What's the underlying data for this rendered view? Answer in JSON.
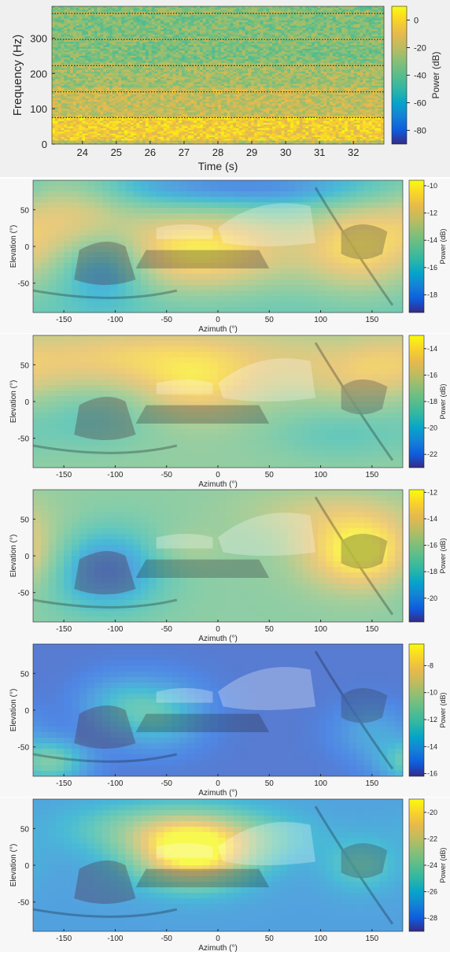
{
  "chart_data": [
    {
      "type": "heatmap",
      "title": "",
      "xlabel": "Time (s)",
      "ylabel": "Frequency (Hz)",
      "colorbar_label": "Power (dB)",
      "xlim": [
        23.1,
        32.9
      ],
      "ylim": [
        0,
        390
      ],
      "xticks": [
        24,
        25,
        26,
        27,
        28,
        29,
        30,
        31,
        32
      ],
      "yticks": [
        0,
        100,
        200,
        300
      ],
      "clim": [
        -90,
        10
      ],
      "colorbar_ticks": [
        0,
        -20,
        -40,
        -60,
        -80
      ],
      "harmonic_lines_hz": [
        75,
        148,
        222,
        296,
        370
      ],
      "band_power_db": [
        {
          "from_hz": 0,
          "to_hz": 10,
          "power_db": -20
        },
        {
          "from_hz": 10,
          "to_hz": 75,
          "power_db": -3
        },
        {
          "from_hz": 75,
          "to_hz": 160,
          "power_db": -18
        },
        {
          "from_hz": 160,
          "to_hz": 230,
          "power_db": -25
        },
        {
          "from_hz": 230,
          "to_hz": 390,
          "power_db": -32
        }
      ],
      "grid": false
    },
    {
      "type": "heatmap",
      "xlabel": "Azimuth (°)",
      "ylabel": "Elevation (°)",
      "colorbar_label": "Power (dB)",
      "xlim": [
        -180,
        180
      ],
      "ylim": [
        -90,
        90
      ],
      "xticks": [
        -150,
        -100,
        -50,
        0,
        50,
        100,
        150
      ],
      "yticks": [
        50,
        0,
        -50
      ],
      "clim": [
        -19.3,
        -9.6
      ],
      "colorbar_ticks": [
        -10,
        -12,
        -14,
        -16,
        -18
      ],
      "background": "360-degree car interior photo",
      "base_db": -15.5,
      "blobs": [
        {
          "az": -20,
          "el": -5,
          "saz": 70,
          "sel": 40,
          "db": 5.5
        },
        {
          "az": 140,
          "el": 0,
          "saz": 40,
          "sel": 45,
          "db": 4.5
        },
        {
          "az": -140,
          "el": 45,
          "saz": 40,
          "sel": 45,
          "db": 3
        },
        {
          "az": -110,
          "el": -25,
          "saz": 30,
          "sel": 35,
          "db": -3.5
        },
        {
          "az": 20,
          "el": 80,
          "saz": 100,
          "sel": 20,
          "db": -3
        }
      ]
    },
    {
      "type": "heatmap",
      "xlabel": "Azimuth (°)",
      "ylabel": "Elevation (°)",
      "colorbar_label": "Power (dB)",
      "xlim": [
        -180,
        180
      ],
      "ylim": [
        -90,
        90
      ],
      "xticks": [
        -150,
        -100,
        -50,
        0,
        50,
        100,
        150
      ],
      "yticks": [
        50,
        0,
        -50
      ],
      "clim": [
        -23,
        -13
      ],
      "colorbar_ticks": [
        -14,
        -16,
        -18,
        -20,
        -22
      ],
      "background": "360-degree car interior photo",
      "base_db": -17.5,
      "blobs": [
        {
          "az": -60,
          "el": 60,
          "saz": 110,
          "sel": 30,
          "db": 3
        },
        {
          "az": -20,
          "el": 15,
          "saz": 40,
          "sel": 30,
          "db": 2.5
        },
        {
          "az": 140,
          "el": 40,
          "saz": 45,
          "sel": 30,
          "db": 2
        },
        {
          "az": -120,
          "el": -25,
          "saz": 40,
          "sel": 30,
          "db": -1.5
        },
        {
          "az": 120,
          "el": -45,
          "saz": 50,
          "sel": 25,
          "db": -1.5
        }
      ]
    },
    {
      "type": "heatmap",
      "xlabel": "Azimuth (°)",
      "ylabel": "Elevation (°)",
      "colorbar_label": "Power (dB)",
      "xlim": [
        -180,
        180
      ],
      "ylim": [
        -90,
        90
      ],
      "xticks": [
        -150,
        -100,
        -50,
        0,
        50,
        100,
        150
      ],
      "yticks": [
        50,
        0,
        -50
      ],
      "clim": [
        -21.8,
        -11.8
      ],
      "colorbar_ticks": [
        -12,
        -14,
        -16,
        -18,
        -20
      ],
      "background": "360-degree car interior photo",
      "base_db": -16.5,
      "blobs": [
        {
          "az": 140,
          "el": 5,
          "saz": 40,
          "sel": 35,
          "db": 5
        },
        {
          "az": 100,
          "el": 60,
          "saz": 60,
          "sel": 25,
          "db": 1.5
        },
        {
          "az": -110,
          "el": -20,
          "saz": 40,
          "sel": 40,
          "db": -4
        },
        {
          "az": -30,
          "el": 10,
          "saz": 25,
          "sel": 20,
          "db": 1
        }
      ]
    },
    {
      "type": "heatmap",
      "xlabel": "Azimuth (°)",
      "ylabel": "Elevation (°)",
      "colorbar_label": "Power (dB)",
      "xlim": [
        -180,
        180
      ],
      "ylim": [
        -90,
        90
      ],
      "xticks": [
        -150,
        -100,
        -50,
        0,
        50,
        100,
        150
      ],
      "yticks": [
        50,
        0,
        -50
      ],
      "clim": [
        -16.2,
        -6.4
      ],
      "colorbar_ticks": [
        -8,
        -10,
        -12,
        -14,
        -16
      ],
      "background": "360-degree car interior photo",
      "base_db": -15.5,
      "blobs": [
        {
          "az": -60,
          "el": -5,
          "saz": 30,
          "sel": 30,
          "db": 3
        },
        {
          "az": -165,
          "el": -70,
          "saz": 25,
          "sel": 20,
          "db": 4
        },
        {
          "az": -100,
          "el": 10,
          "saz": 25,
          "sel": 25,
          "db": 1.5
        },
        {
          "az": 150,
          "el": -30,
          "saz": 25,
          "sel": 25,
          "db": 1.5
        }
      ]
    },
    {
      "type": "heatmap",
      "xlabel": "Azimuth (°)",
      "ylabel": "Elevation (°)",
      "colorbar_label": "Power (dB)",
      "xlim": [
        -180,
        180
      ],
      "ylim": [
        -90,
        90
      ],
      "xticks": [
        -150,
        -100,
        -50,
        0,
        50,
        100,
        150
      ],
      "yticks": [
        50,
        0,
        -50
      ],
      "clim": [
        -29,
        -19
      ],
      "colorbar_ticks": [
        -20,
        -22,
        -24,
        -26,
        -28
      ],
      "background": "360-degree car interior photo",
      "base_db": -27,
      "blobs": [
        {
          "az": -25,
          "el": 15,
          "saz": 40,
          "sel": 30,
          "db": 8
        },
        {
          "az": -60,
          "el": 50,
          "saz": 60,
          "sel": 25,
          "db": 3
        },
        {
          "az": 140,
          "el": 0,
          "saz": 25,
          "sel": 25,
          "db": 2
        },
        {
          "az": 30,
          "el": 40,
          "saz": 50,
          "sel": 25,
          "db": 1.5
        }
      ]
    }
  ]
}
